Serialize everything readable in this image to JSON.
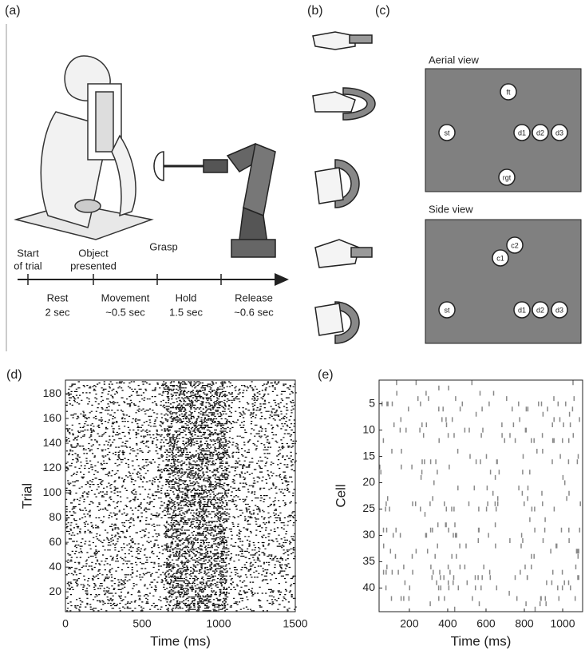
{
  "panels": {
    "a": {
      "label": "(a)",
      "events": [
        [
          "Start",
          "of trial"
        ],
        [
          "Object",
          "presented"
        ],
        [
          "Grasp"
        ]
      ],
      "phases": [
        {
          "name": "Rest",
          "duration": "2 sec"
        },
        {
          "name": "Movement",
          "duration": "~0.5 sec"
        },
        {
          "name": "Hold",
          "duration": "1.5 sec"
        },
        {
          "name": "Release",
          "duration": "~0.6 sec"
        }
      ]
    },
    "b": {
      "label": "(b)"
    },
    "c": {
      "label": "(c)",
      "aerial": {
        "title": "Aerial view",
        "targets": [
          "ft",
          "st",
          "d1",
          "d2",
          "d3",
          "rgt"
        ]
      },
      "side": {
        "title": "Side view",
        "targets": [
          "c2",
          "c1",
          "st",
          "d1",
          "d2",
          "d3"
        ]
      }
    }
  },
  "chart_data": [
    {
      "panel_label": "(d)",
      "type": "raster",
      "xlabel": "Time (ms)",
      "ylabel": "Trial",
      "xlim": [
        0,
        1500
      ],
      "xticks": [
        0,
        500,
        1000,
        1500
      ],
      "ylim": [
        4,
        191
      ],
      "yticks": [
        20,
        40,
        60,
        80,
        100,
        120,
        140,
        160,
        180
      ]
    },
    {
      "panel_label": "(e)",
      "type": "raster",
      "xlabel": "Time (ms)",
      "ylabel": "Cell",
      "xlim": [
        42,
        1104
      ],
      "xticks": [
        200,
        400,
        600,
        800,
        1000
      ],
      "ylim": [
        44.5,
        0.5
      ],
      "yticks": [
        5,
        10,
        15,
        20,
        25,
        30,
        35,
        40
      ]
    }
  ]
}
